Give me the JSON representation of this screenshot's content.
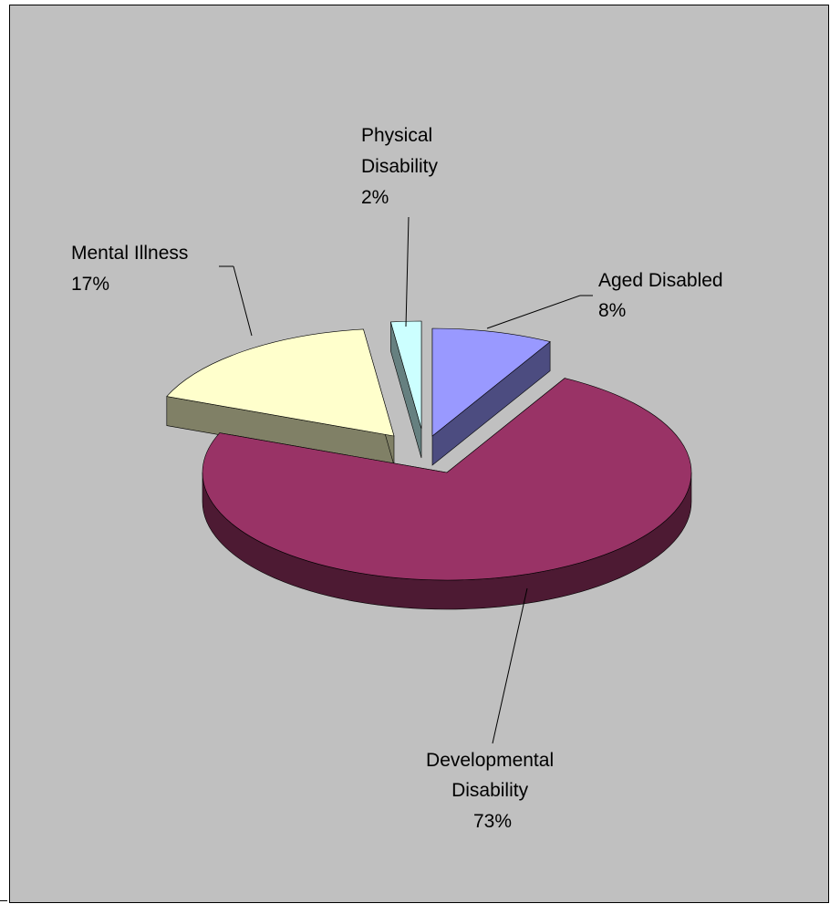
{
  "chart_data": {
    "type": "pie",
    "style": "3d-exploded",
    "title": "",
    "legend": "none",
    "slices": [
      {
        "label_lines": [
          "Aged Disabled"
        ],
        "pct_label": "8%",
        "value": 8,
        "color": "#9999ff",
        "side_color": "#4c4c80"
      },
      {
        "label_lines": [
          "Developmental",
          "Disability"
        ],
        "pct_label": "73%",
        "value": 73,
        "color": "#993366",
        "side_color": "#4d1a33"
      },
      {
        "label_lines": [
          "Mental Illness"
        ],
        "pct_label": "17%",
        "value": 17,
        "color": "#ffffcc",
        "side_color": "#808066"
      },
      {
        "label_lines": [
          "Physical",
          "Disability"
        ],
        "pct_label": "2%",
        "value": 2,
        "color": "#ccffff",
        "side_color": "#668080"
      }
    ]
  }
}
